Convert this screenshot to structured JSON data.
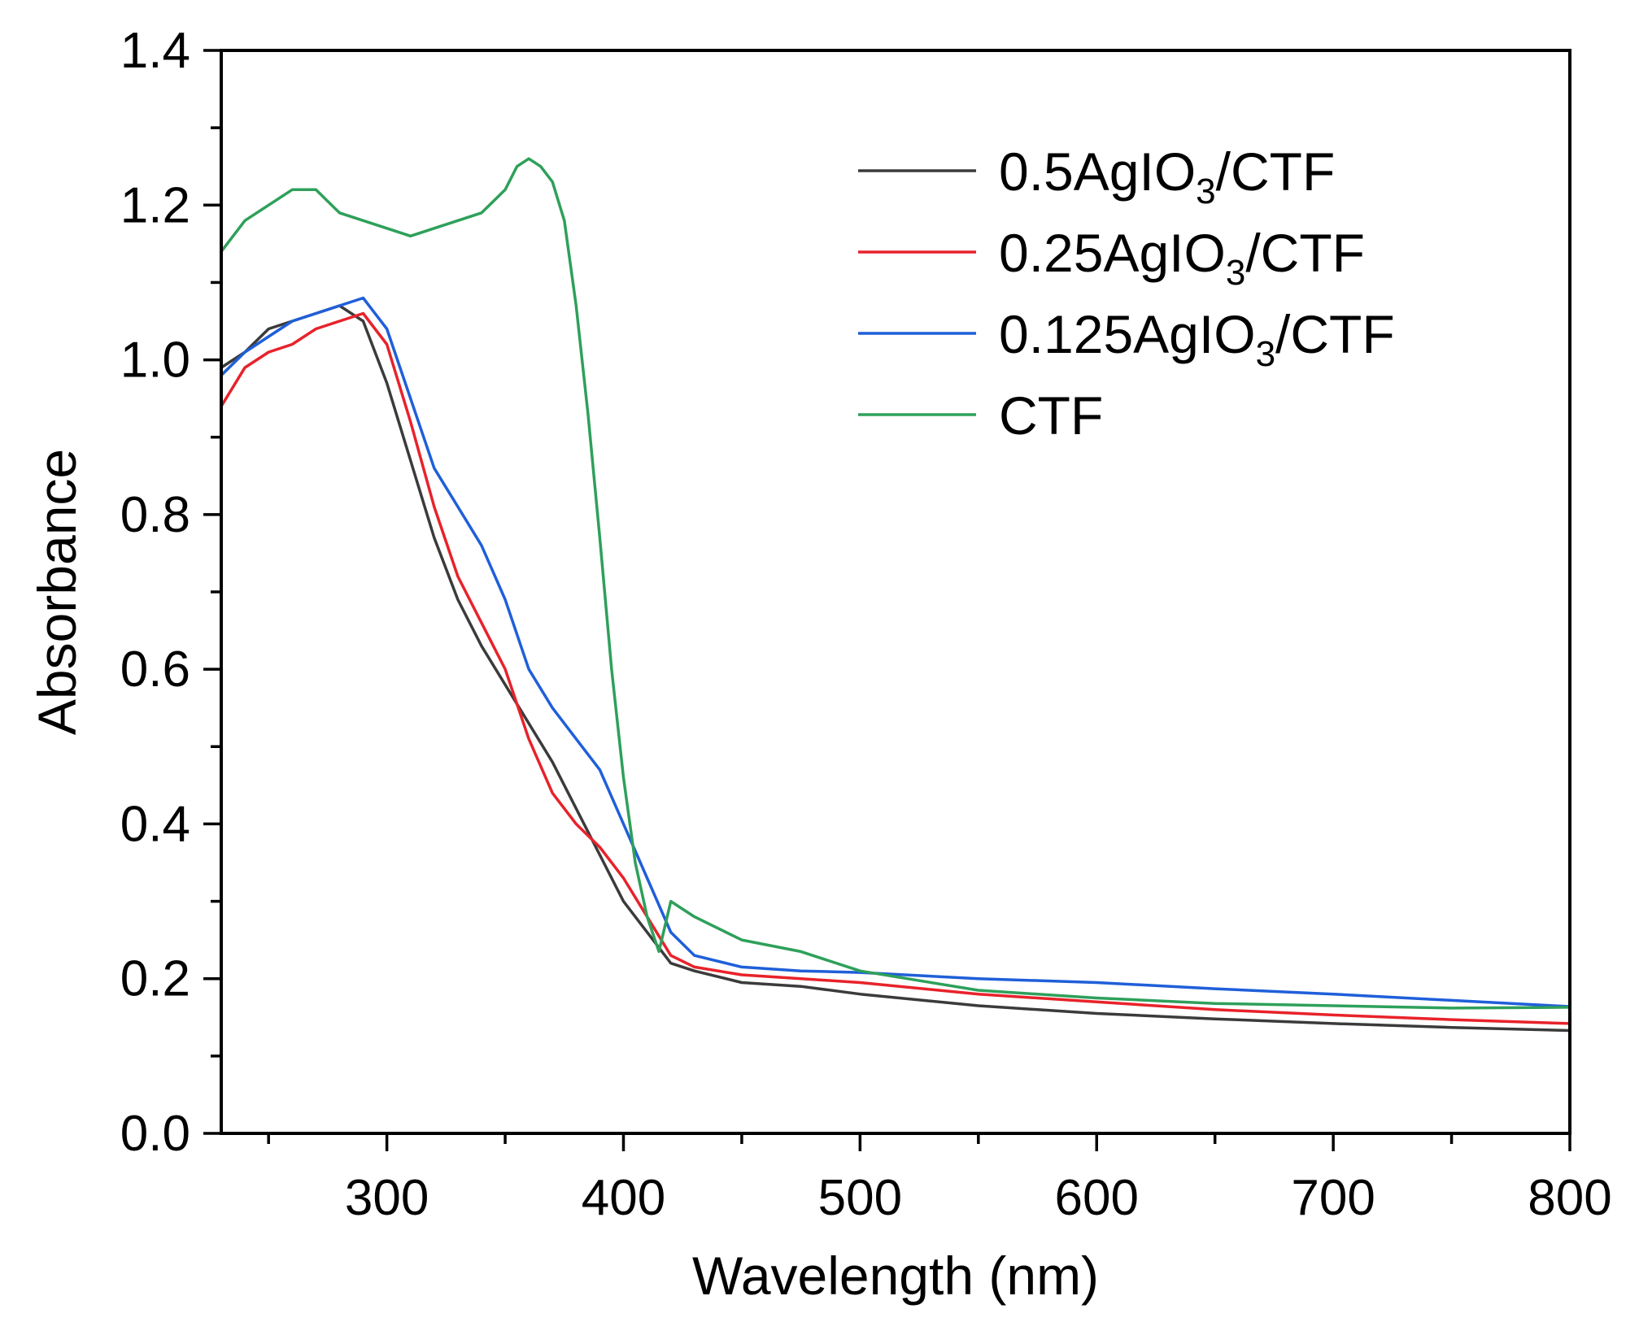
{
  "chart_data": {
    "type": "line",
    "title": "",
    "xlabel": "Wavelength (nm)",
    "ylabel": "Absorbance",
    "xlim": [
      230,
      800
    ],
    "ylim": [
      0.0,
      1.4
    ],
    "x_ticks": [
      300,
      400,
      500,
      600,
      700,
      800
    ],
    "x_tick_labels": [
      "300",
      "400",
      "500",
      "600",
      "700",
      "800"
    ],
    "y_ticks": [
      0.0,
      0.2,
      0.4,
      0.6,
      0.8,
      1.0,
      1.2,
      1.4
    ],
    "y_tick_labels": [
      "0.0",
      "0.2",
      "0.4",
      "0.6",
      "0.8",
      "1.0",
      "1.2",
      "1.4"
    ],
    "grid": false,
    "legend_position": "top-right",
    "series": [
      {
        "name": "0.5AgIO3/CTF",
        "legend": {
          "prefix": "0.5AgIO",
          "sub": "3",
          "suffix": "/CTF"
        },
        "color": "#3b3b3b",
        "x": [
          230,
          240,
          250,
          260,
          270,
          280,
          290,
          300,
          310,
          320,
          330,
          340,
          350,
          360,
          370,
          380,
          390,
          400,
          410,
          420,
          430,
          450,
          475,
          500,
          550,
          600,
          650,
          700,
          750,
          800
        ],
        "y": [
          0.99,
          1.01,
          1.04,
          1.05,
          1.06,
          1.07,
          1.05,
          0.97,
          0.87,
          0.77,
          0.69,
          0.63,
          0.58,
          0.53,
          0.48,
          0.42,
          0.36,
          0.3,
          0.26,
          0.22,
          0.21,
          0.195,
          0.19,
          0.18,
          0.165,
          0.155,
          0.148,
          0.142,
          0.137,
          0.133
        ]
      },
      {
        "name": "0.25AgIO3/CTF",
        "legend": {
          "prefix": "0.25AgIO",
          "sub": "3",
          "suffix": "/CTF"
        },
        "color": "#e8222a",
        "x": [
          230,
          240,
          250,
          260,
          270,
          280,
          290,
          300,
          310,
          320,
          330,
          340,
          350,
          360,
          370,
          380,
          390,
          400,
          410,
          420,
          430,
          450,
          475,
          500,
          550,
          600,
          650,
          700,
          750,
          800
        ],
        "y": [
          0.94,
          0.99,
          1.01,
          1.02,
          1.04,
          1.05,
          1.06,
          1.02,
          0.92,
          0.81,
          0.72,
          0.66,
          0.6,
          0.51,
          0.44,
          0.4,
          0.37,
          0.33,
          0.28,
          0.23,
          0.215,
          0.205,
          0.2,
          0.195,
          0.18,
          0.17,
          0.16,
          0.153,
          0.147,
          0.142
        ]
      },
      {
        "name": "0.125AgIO3/CTF",
        "legend": {
          "prefix": "0.125AgIO",
          "sub": "3",
          "suffix": "/CTF"
        },
        "color": "#1f5fd9",
        "x": [
          230,
          240,
          250,
          260,
          270,
          280,
          290,
          300,
          310,
          320,
          330,
          340,
          350,
          360,
          370,
          380,
          390,
          400,
          410,
          420,
          430,
          450,
          475,
          500,
          550,
          600,
          650,
          700,
          750,
          800
        ],
        "y": [
          0.98,
          1.01,
          1.03,
          1.05,
          1.06,
          1.07,
          1.08,
          1.04,
          0.95,
          0.86,
          0.81,
          0.76,
          0.69,
          0.6,
          0.55,
          0.51,
          0.47,
          0.4,
          0.33,
          0.26,
          0.23,
          0.215,
          0.21,
          0.208,
          0.2,
          0.195,
          0.187,
          0.18,
          0.172,
          0.164
        ]
      },
      {
        "name": "CTF",
        "legend": {
          "prefix": "CTF",
          "sub": "",
          "suffix": ""
        },
        "color": "#2ea05a",
        "x": [
          230,
          240,
          250,
          260,
          270,
          280,
          290,
          300,
          310,
          320,
          330,
          340,
          350,
          355,
          360,
          365,
          370,
          375,
          380,
          385,
          390,
          395,
          400,
          405,
          410,
          415,
          420,
          430,
          450,
          475,
          500,
          550,
          600,
          650,
          700,
          750,
          800
        ],
        "y": [
          1.14,
          1.18,
          1.2,
          1.22,
          1.22,
          1.19,
          1.18,
          1.17,
          1.16,
          1.17,
          1.18,
          1.19,
          1.22,
          1.25,
          1.26,
          1.25,
          1.23,
          1.18,
          1.07,
          0.93,
          0.77,
          0.6,
          0.46,
          0.35,
          0.28,
          0.235,
          0.3,
          0.28,
          0.25,
          0.235,
          0.21,
          0.185,
          0.175,
          0.168,
          0.165,
          0.162,
          0.163
        ]
      }
    ]
  }
}
